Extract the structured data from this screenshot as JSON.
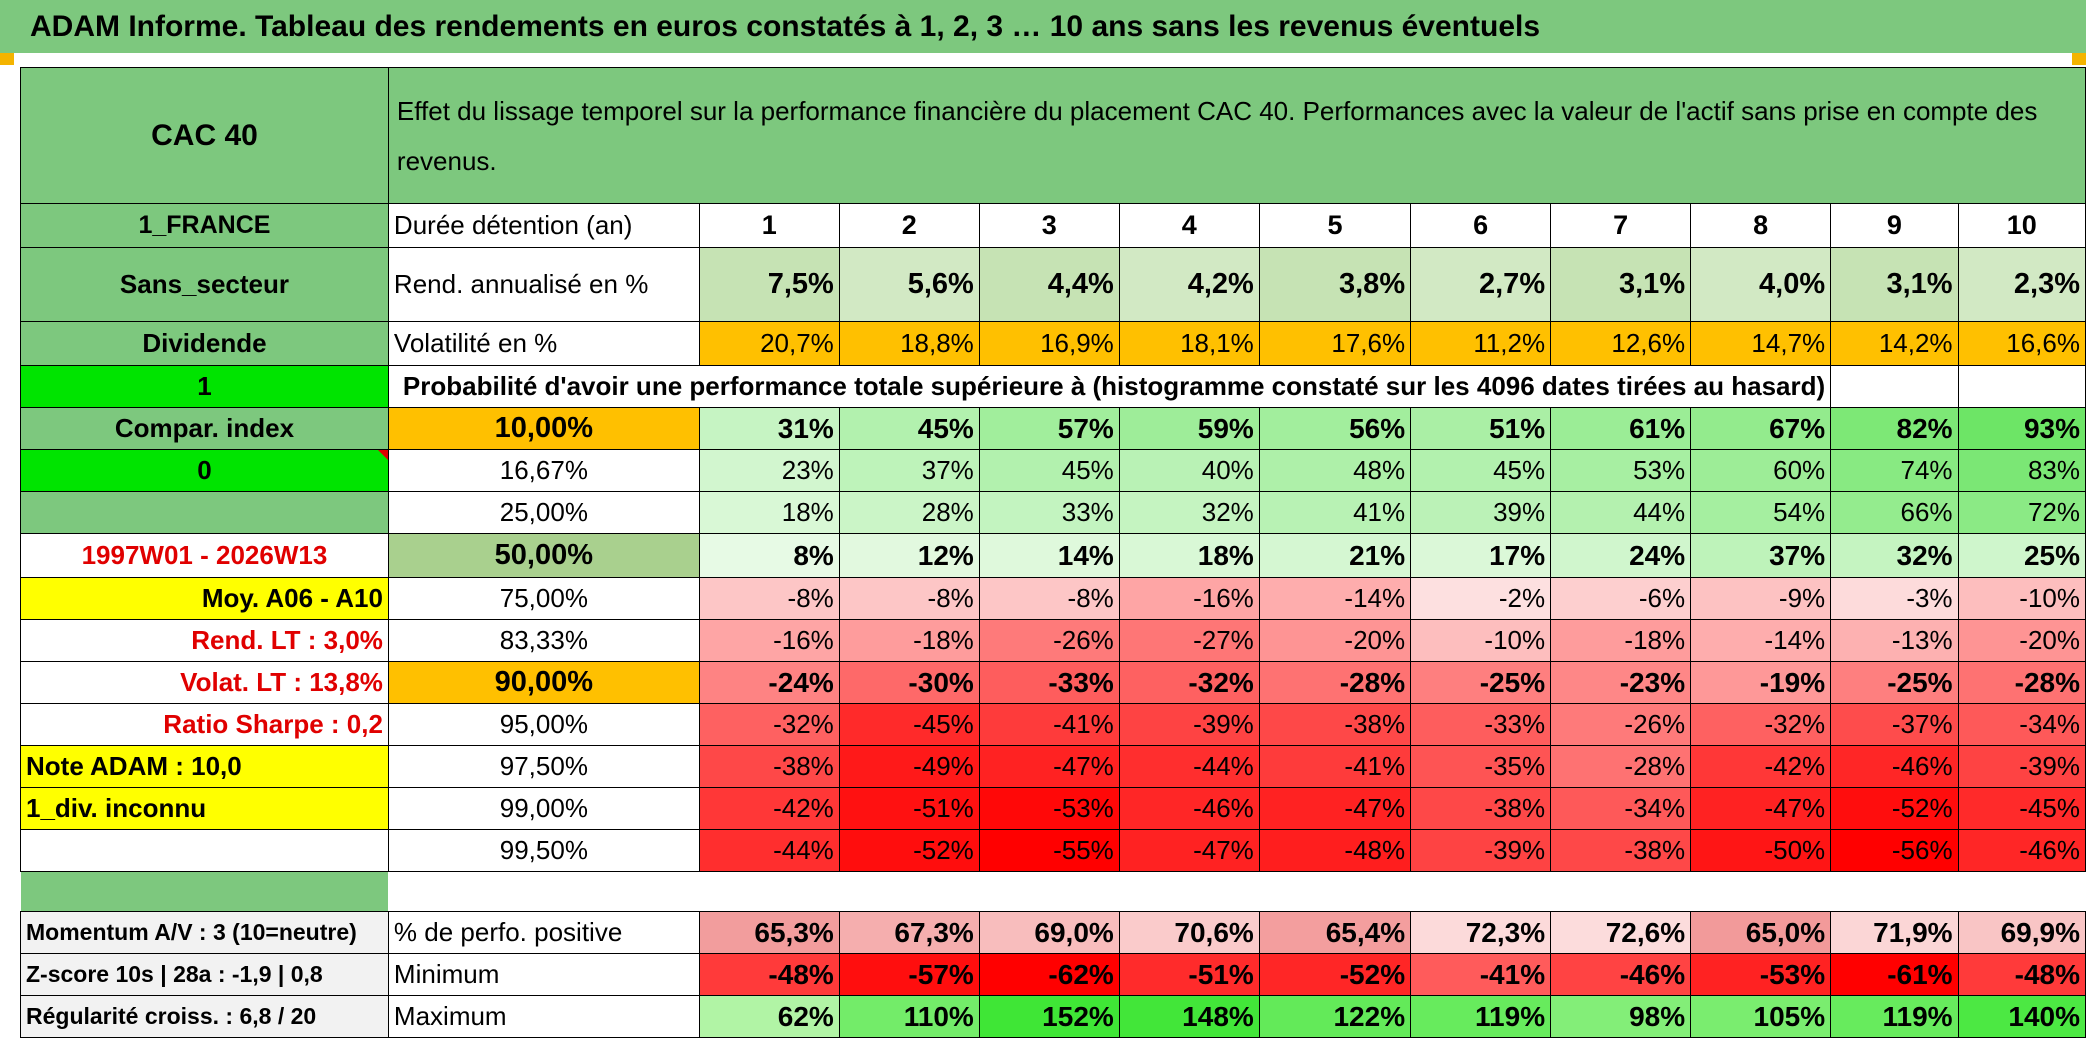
{
  "banner": "ADAM Informe. Tableau des rendements en euros constatés à 1, 2, 3 … 10 ans sans les revenus éventuels",
  "side": {
    "name": "CAC 40",
    "country": "1_FRANCE",
    "sector": "Sans_secteur",
    "dividend": "Dividende",
    "flag1": "1",
    "compar": "Compar. index",
    "flag0": "0",
    "period": "1997W01 - 2026W13",
    "moy": "Moy. A06 - A10",
    "rend_lt": "Rend. LT :   3,0%",
    "volat_lt": "Volat. LT :   13,8%",
    "sharpe": "Ratio Sharpe :   0,2",
    "note": "Note ADAM : 10,0",
    "div": "1_div. inconnu",
    "momentum": "Momentum A/V : 3 (10=neutre)",
    "zscore": "Z-score 10s | 28a : -1,9 | 0,8",
    "regularite": "Régularité croiss. : 6,8 / 20"
  },
  "description": "Effet du lissage temporel sur la performance financière du placement CAC 40. Performances avec la valeur de l'actif sans prise en compte des revenus.",
  "duration_label": "Durée détention (an)",
  "years": [
    "1",
    "2",
    "3",
    "4",
    "5",
    "6",
    "7",
    "8",
    "9",
    "10"
  ],
  "rend": {
    "label": "Rend. annualisé en %",
    "values": [
      "7,5%",
      "5,6%",
      "4,4%",
      "4,2%",
      "3,8%",
      "2,7%",
      "3,1%",
      "4,0%",
      "3,1%",
      "2,3%"
    ]
  },
  "vol": {
    "label": "Volatilité en %",
    "values": [
      "20,7%",
      "18,8%",
      "16,9%",
      "18,1%",
      "17,6%",
      "11,2%",
      "12,6%",
      "14,7%",
      "14,2%",
      "16,6%"
    ]
  },
  "prob_title": "Probabilité d'avoir une performance totale supérieure à (histogramme constaté sur les 4096 dates tirées au hasard)",
  "thresholds": [
    {
      "label": "10,00%",
      "values": [
        "31%",
        "45%",
        "57%",
        "59%",
        "56%",
        "51%",
        "61%",
        "67%",
        "82%",
        "93%"
      ]
    },
    {
      "label": "16,67%",
      "values": [
        "23%",
        "37%",
        "45%",
        "40%",
        "48%",
        "45%",
        "53%",
        "60%",
        "74%",
        "83%"
      ]
    },
    {
      "label": "25,00%",
      "values": [
        "18%",
        "28%",
        "33%",
        "32%",
        "41%",
        "39%",
        "44%",
        "54%",
        "66%",
        "72%"
      ]
    },
    {
      "label": "50,00%",
      "values": [
        "8%",
        "12%",
        "14%",
        "18%",
        "21%",
        "17%",
        "24%",
        "37%",
        "32%",
        "25%"
      ]
    },
    {
      "label": "75,00%",
      "values": [
        "-8%",
        "-8%",
        "-8%",
        "-16%",
        "-14%",
        "-2%",
        "-6%",
        "-9%",
        "-3%",
        "-10%"
      ]
    },
    {
      "label": "83,33%",
      "values": [
        "-16%",
        "-18%",
        "-26%",
        "-27%",
        "-20%",
        "-10%",
        "-18%",
        "-14%",
        "-13%",
        "-20%"
      ]
    },
    {
      "label": "90,00%",
      "values": [
        "-24%",
        "-30%",
        "-33%",
        "-32%",
        "-28%",
        "-25%",
        "-23%",
        "-19%",
        "-25%",
        "-28%"
      ]
    },
    {
      "label": "95,00%",
      "values": [
        "-32%",
        "-45%",
        "-41%",
        "-39%",
        "-38%",
        "-33%",
        "-26%",
        "-32%",
        "-37%",
        "-34%"
      ]
    },
    {
      "label": "97,50%",
      "values": [
        "-38%",
        "-49%",
        "-47%",
        "-44%",
        "-41%",
        "-35%",
        "-28%",
        "-42%",
        "-46%",
        "-39%"
      ]
    },
    {
      "label": "99,00%",
      "values": [
        "-42%",
        "-51%",
        "-53%",
        "-46%",
        "-47%",
        "-38%",
        "-34%",
        "-47%",
        "-52%",
        "-45%"
      ]
    },
    {
      "label": "99,50%",
      "values": [
        "-44%",
        "-52%",
        "-55%",
        "-47%",
        "-48%",
        "-39%",
        "-38%",
        "-50%",
        "-56%",
        "-46%"
      ]
    }
  ],
  "positive": {
    "label": "% de perfo. positive",
    "values": [
      "65,3%",
      "67,3%",
      "69,0%",
      "70,6%",
      "65,4%",
      "72,3%",
      "72,6%",
      "65,0%",
      "71,9%",
      "69,9%"
    ]
  },
  "minimum": {
    "label": "Minimum",
    "values": [
      "-48%",
      "-57%",
      "-62%",
      "-51%",
      "-52%",
      "-41%",
      "-46%",
      "-53%",
      "-61%",
      "-48%"
    ]
  },
  "maximum": {
    "label": "Maximum",
    "values": [
      "62%",
      "110%",
      "152%",
      "148%",
      "122%",
      "119%",
      "98%",
      "105%",
      "119%",
      "140%"
    ]
  },
  "colors": {
    "header_green": "#7dc87e",
    "bright_green": "#00e400",
    "orange": "#ffc000",
    "yellow": "#ffff00",
    "red_text": "#e00000"
  }
}
